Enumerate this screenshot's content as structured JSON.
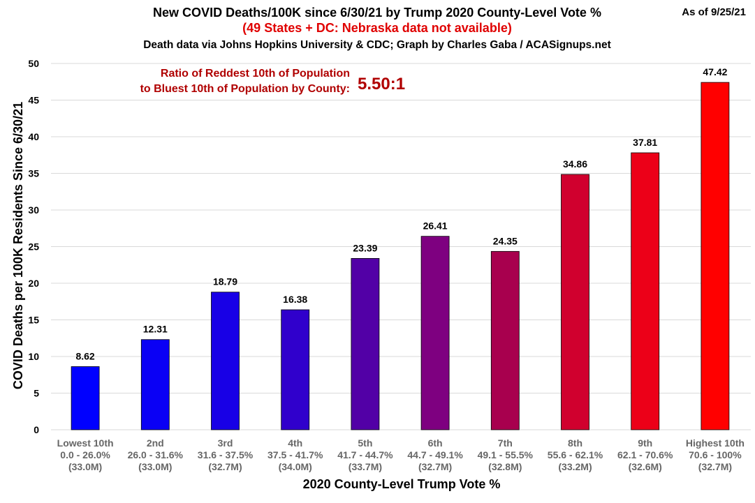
{
  "chart_data": {
    "type": "bar",
    "title": "New COVID Deaths/100K since 6/30/21 by Trump 2020 County-Level Vote %",
    "subtitle": "(49 States + DC: Nebraska data not available)",
    "source": "Death data via Johns Hopkins University & CDC; Graph by Charles Gaba / ACASignups.net",
    "as_of": "As of 9/25/21",
    "xlabel": "2020 County-Level Trump Vote %",
    "ylabel": "COVID Deaths per 100K Residents Since 6/30/21",
    "ylim": [
      0,
      50
    ],
    "yticks": [
      0,
      5,
      10,
      15,
      20,
      25,
      30,
      35,
      40,
      45,
      50
    ],
    "grid": true,
    "annotation": {
      "line1": "Ratio of Reddest 10th of Population",
      "line2": "to Bluest 10th of Population by County:",
      "ratio": "5.50:1"
    },
    "categories": [
      {
        "name": "Lowest 10th",
        "range": "0.0 - 26.0%",
        "pop": "(33.0M)"
      },
      {
        "name": "2nd",
        "range": "26.0 - 31.6%",
        "pop": "(33.0M)"
      },
      {
        "name": "3rd",
        "range": "31.6 - 37.5%",
        "pop": "(32.7M)"
      },
      {
        "name": "4th",
        "range": "37.5 - 41.7%",
        "pop": "(34.0M)"
      },
      {
        "name": "5th",
        "range": "41.7 - 44.7%",
        "pop": "(33.7M)"
      },
      {
        "name": "6th",
        "range": "44.7 - 49.1%",
        "pop": "(32.7M)"
      },
      {
        "name": "7th",
        "range": "49.1 - 55.5%",
        "pop": "(32.8M)"
      },
      {
        "name": "8th",
        "range": "55.6 - 62.1%",
        "pop": "(33.2M)"
      },
      {
        "name": "9th",
        "range": "62.1 - 70.6%",
        "pop": "(32.6M)"
      },
      {
        "name": "Highest 10th",
        "range": "70.6 - 100%",
        "pop": "(32.7M)"
      }
    ],
    "values": [
      8.62,
      12.31,
      18.79,
      16.38,
      23.39,
      26.41,
      24.35,
      34.86,
      37.81,
      47.42
    ],
    "value_labels": [
      "8.62",
      "12.31",
      "18.79",
      "16.38",
      "23.39",
      "26.41",
      "24.35",
      "34.86",
      "37.81",
      "47.42"
    ],
    "colors": [
      "#0000ff",
      "#0a00f5",
      "#1800e6",
      "#3000cc",
      "#5200a6",
      "#7e0080",
      "#a8004e",
      "#d0002e",
      "#ec0018",
      "#ff0000"
    ]
  }
}
